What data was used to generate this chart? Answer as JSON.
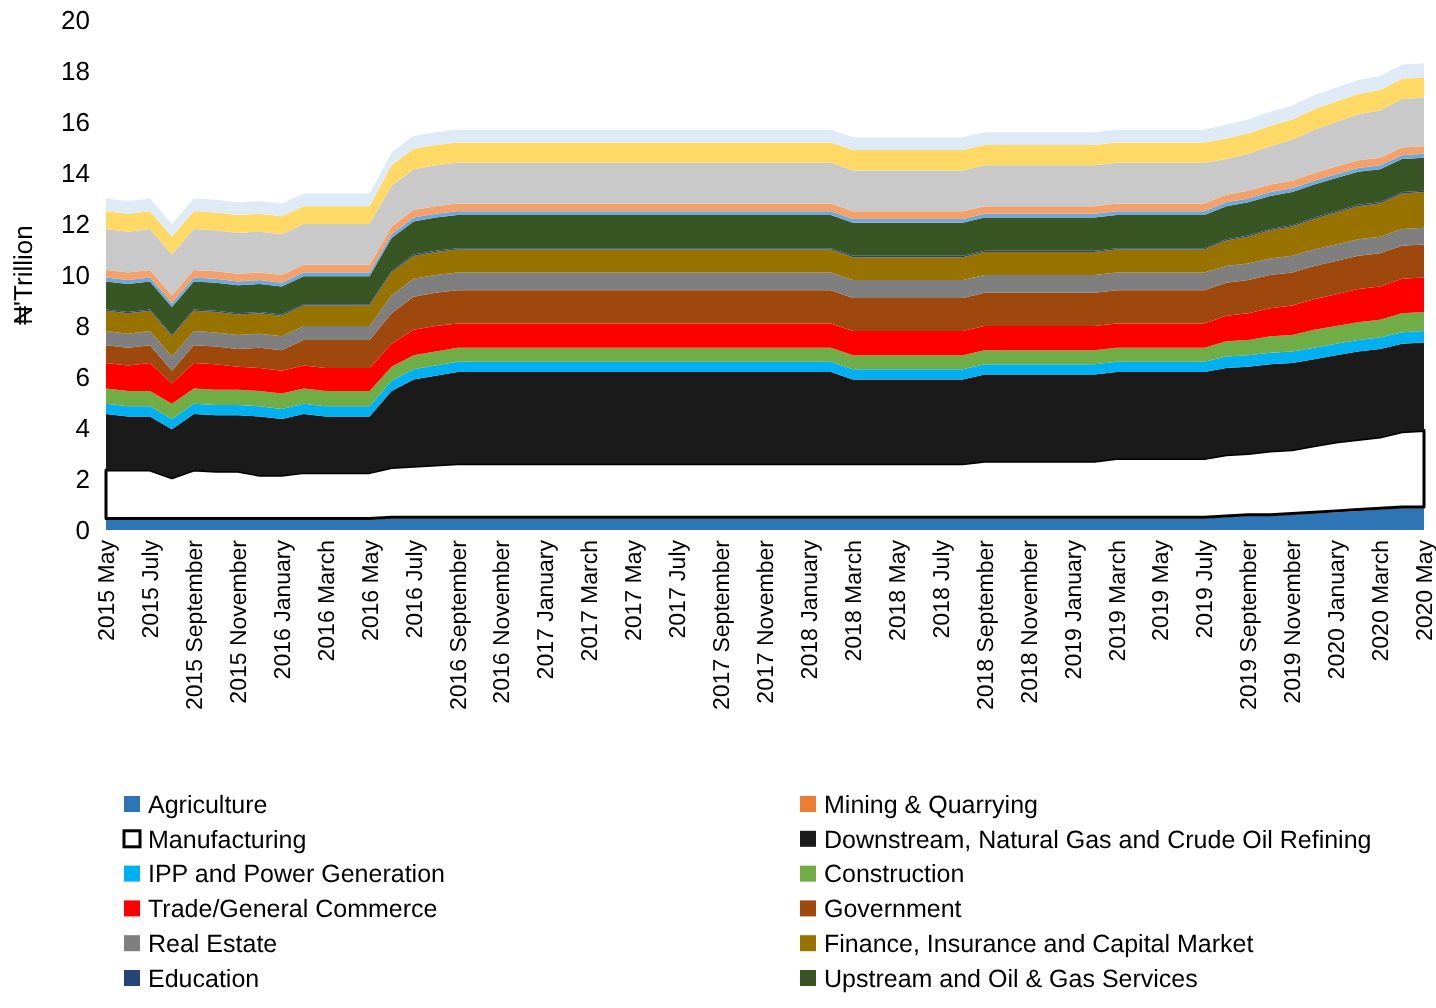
{
  "chart_data": {
    "type": "area",
    "stacked": true,
    "ylabel": "₦'Trillion",
    "ylim": [
      0,
      20
    ],
    "yticks": [
      0,
      2,
      4,
      6,
      8,
      10,
      12,
      14,
      16,
      18,
      20
    ],
    "grid": false,
    "legend": "bottom",
    "categories": [
      "2015 May",
      null,
      "2015 July",
      null,
      "2015 September",
      null,
      "2015 November",
      null,
      "2016 January",
      null,
      "2016 March",
      null,
      "2016 May",
      null,
      "2016 July",
      null,
      "2016 September",
      null,
      "2016 November",
      null,
      "2017 January",
      null,
      "2017 March",
      null,
      "2017 May",
      null,
      "2017 July",
      null,
      "2017 September",
      null,
      "2017 November",
      null,
      "2018 January",
      null,
      "2018 March",
      null,
      "2018 May",
      null,
      "2018 July",
      null,
      "2018 September",
      null,
      "2018 November",
      null,
      "2019 January",
      null,
      "2019 March",
      null,
      "2019 May",
      null,
      "2019 July",
      null,
      "2019 September",
      null,
      "2019 November",
      null,
      "2020 January",
      null,
      "2020 March",
      null,
      "2020 May"
    ],
    "series": [
      {
        "name": "Agriculture",
        "color": "#2e75b6",
        "values": [
          0.4,
          0.4,
          0.4,
          0.4,
          0.4,
          0.4,
          0.4,
          0.4,
          0.4,
          0.4,
          0.4,
          0.4,
          0.4,
          0.45,
          0.45,
          0.45,
          0.45,
          0.45,
          0.45,
          0.45,
          0.45,
          0.45,
          0.45,
          0.45,
          0.45,
          0.45,
          0.45,
          0.45,
          0.45,
          0.45,
          0.45,
          0.45,
          0.45,
          0.45,
          0.45,
          0.45,
          0.45,
          0.45,
          0.45,
          0.45,
          0.45,
          0.45,
          0.45,
          0.45,
          0.45,
          0.45,
          0.45,
          0.45,
          0.45,
          0.45,
          0.45,
          0.5,
          0.55,
          0.55,
          0.6,
          0.65,
          0.7,
          0.75,
          0.8,
          0.85,
          0.85
        ]
      },
      {
        "name": "Mining & Quarrying",
        "color": "#ed7d31",
        "values": [
          0.05,
          0.05,
          0.05,
          0.05,
          0.05,
          0.05,
          0.05,
          0.05,
          0.05,
          0.05,
          0.05,
          0.05,
          0.05,
          0.05,
          0.05,
          0.05,
          0.05,
          0.05,
          0.05,
          0.05,
          0.05,
          0.05,
          0.05,
          0.05,
          0.05,
          0.05,
          0.05,
          0.05,
          0.05,
          0.05,
          0.05,
          0.05,
          0.05,
          0.05,
          0.05,
          0.05,
          0.05,
          0.05,
          0.05,
          0.05,
          0.05,
          0.05,
          0.05,
          0.05,
          0.05,
          0.05,
          0.05,
          0.05,
          0.05,
          0.05,
          0.05,
          0.05,
          0.05,
          0.05,
          0.05,
          0.05,
          0.05,
          0.05,
          0.05,
          0.05,
          0.05
        ]
      },
      {
        "name": "Manufacturing",
        "color": "#ffffff",
        "values": [
          1.9,
          1.9,
          1.9,
          1.6,
          1.9,
          1.85,
          1.85,
          1.7,
          1.7,
          1.8,
          1.8,
          1.8,
          1.8,
          1.95,
          2.0,
          2.05,
          2.1,
          2.1,
          2.1,
          2.1,
          2.1,
          2.1,
          2.1,
          2.1,
          2.1,
          2.1,
          2.1,
          2.1,
          2.1,
          2.1,
          2.1,
          2.1,
          2.1,
          2.1,
          2.1,
          2.1,
          2.1,
          2.1,
          2.1,
          2.1,
          2.2,
          2.2,
          2.2,
          2.2,
          2.2,
          2.2,
          2.3,
          2.3,
          2.3,
          2.3,
          2.3,
          2.4,
          2.4,
          2.5,
          2.5,
          2.6,
          2.7,
          2.75,
          2.8,
          2.95,
          3.0
        ]
      },
      {
        "name": "Downstream, Natural Gas and Crude Oil Refining",
        "color": "#1a1a1a",
        "values": [
          2.2,
          2.1,
          2.1,
          1.9,
          2.2,
          2.2,
          2.2,
          2.3,
          2.2,
          2.3,
          2.2,
          2.2,
          2.2,
          3.0,
          3.4,
          3.5,
          3.6,
          3.6,
          3.6,
          3.6,
          3.6,
          3.6,
          3.6,
          3.6,
          3.6,
          3.6,
          3.6,
          3.6,
          3.6,
          3.6,
          3.6,
          3.6,
          3.6,
          3.6,
          3.3,
          3.3,
          3.3,
          3.3,
          3.3,
          3.3,
          3.4,
          3.4,
          3.4,
          3.4,
          3.4,
          3.4,
          3.4,
          3.4,
          3.4,
          3.4,
          3.4,
          3.4,
          3.4,
          3.4,
          3.4,
          3.4,
          3.4,
          3.45,
          3.45,
          3.45,
          3.45
        ]
      },
      {
        "name": "IPP and Power Generation",
        "color": "#00b0f0",
        "values": [
          0.4,
          0.4,
          0.4,
          0.4,
          0.4,
          0.4,
          0.4,
          0.4,
          0.4,
          0.4,
          0.4,
          0.4,
          0.4,
          0.4,
          0.4,
          0.4,
          0.4,
          0.4,
          0.4,
          0.4,
          0.4,
          0.4,
          0.4,
          0.4,
          0.4,
          0.4,
          0.4,
          0.4,
          0.4,
          0.4,
          0.4,
          0.4,
          0.4,
          0.4,
          0.4,
          0.4,
          0.4,
          0.4,
          0.4,
          0.4,
          0.4,
          0.4,
          0.4,
          0.4,
          0.4,
          0.4,
          0.4,
          0.4,
          0.4,
          0.4,
          0.4,
          0.45,
          0.45,
          0.45,
          0.45,
          0.45,
          0.45,
          0.45,
          0.45,
          0.45,
          0.45
        ]
      },
      {
        "name": "Construction",
        "color": "#70ad47",
        "values": [
          0.6,
          0.6,
          0.6,
          0.6,
          0.6,
          0.6,
          0.6,
          0.6,
          0.6,
          0.6,
          0.6,
          0.6,
          0.6,
          0.55,
          0.55,
          0.55,
          0.55,
          0.55,
          0.55,
          0.55,
          0.55,
          0.55,
          0.55,
          0.55,
          0.55,
          0.55,
          0.55,
          0.55,
          0.55,
          0.55,
          0.55,
          0.55,
          0.55,
          0.55,
          0.55,
          0.55,
          0.55,
          0.55,
          0.55,
          0.55,
          0.55,
          0.55,
          0.55,
          0.55,
          0.55,
          0.55,
          0.55,
          0.55,
          0.55,
          0.55,
          0.55,
          0.6,
          0.6,
          0.65,
          0.65,
          0.7,
          0.7,
          0.7,
          0.7,
          0.75,
          0.75
        ]
      },
      {
        "name": "Trade/General Commerce",
        "color": "#ff0000",
        "values": [
          1.0,
          1.0,
          1.1,
          0.8,
          1.0,
          1.0,
          0.9,
          0.9,
          0.9,
          0.9,
          0.9,
          0.9,
          0.9,
          0.9,
          1.0,
          1.0,
          0.95,
          0.95,
          0.95,
          0.95,
          0.95,
          0.95,
          0.95,
          0.95,
          0.95,
          0.95,
          0.95,
          0.95,
          0.95,
          0.95,
          0.95,
          0.95,
          0.95,
          0.95,
          0.95,
          0.95,
          0.95,
          0.95,
          0.95,
          0.95,
          0.95,
          0.95,
          0.95,
          0.95,
          0.95,
          0.95,
          0.95,
          0.95,
          0.95,
          0.95,
          0.95,
          1.0,
          1.05,
          1.1,
          1.15,
          1.2,
          1.25,
          1.3,
          1.3,
          1.35,
          1.35
        ]
      },
      {
        "name": "Government",
        "color": "#9e480e",
        "values": [
          0.7,
          0.7,
          0.7,
          0.5,
          0.7,
          0.7,
          0.7,
          0.8,
          0.8,
          1.0,
          1.1,
          1.1,
          1.1,
          1.2,
          1.3,
          1.3,
          1.3,
          1.3,
          1.3,
          1.3,
          1.3,
          1.3,
          1.3,
          1.3,
          1.3,
          1.3,
          1.3,
          1.3,
          1.3,
          1.3,
          1.3,
          1.3,
          1.3,
          1.3,
          1.3,
          1.3,
          1.3,
          1.3,
          1.3,
          1.3,
          1.3,
          1.3,
          1.3,
          1.3,
          1.3,
          1.3,
          1.3,
          1.3,
          1.3,
          1.3,
          1.3,
          1.3,
          1.3,
          1.3,
          1.3,
          1.3,
          1.3,
          1.3,
          1.3,
          1.3,
          1.3
        ]
      },
      {
        "name": "Real Estate",
        "color": "#7f7f7f",
        "values": [
          0.55,
          0.55,
          0.55,
          0.55,
          0.55,
          0.55,
          0.55,
          0.55,
          0.55,
          0.55,
          0.55,
          0.55,
          0.55,
          0.7,
          0.7,
          0.7,
          0.7,
          0.7,
          0.7,
          0.7,
          0.7,
          0.7,
          0.7,
          0.7,
          0.7,
          0.7,
          0.7,
          0.7,
          0.7,
          0.7,
          0.7,
          0.7,
          0.7,
          0.7,
          0.7,
          0.7,
          0.7,
          0.7,
          0.7,
          0.7,
          0.7,
          0.7,
          0.7,
          0.7,
          0.7,
          0.7,
          0.7,
          0.7,
          0.7,
          0.7,
          0.7,
          0.65,
          0.65,
          0.65,
          0.65,
          0.65,
          0.65,
          0.65,
          0.65,
          0.65,
          0.65
        ]
      },
      {
        "name": "Finance, Insurance and Capital Market",
        "color": "#997300",
        "values": [
          0.8,
          0.8,
          0.8,
          0.8,
          0.8,
          0.8,
          0.8,
          0.8,
          0.8,
          0.8,
          0.8,
          0.8,
          0.8,
          0.9,
          0.9,
          0.9,
          0.9,
          0.9,
          0.9,
          0.9,
          0.9,
          0.9,
          0.9,
          0.9,
          0.9,
          0.9,
          0.9,
          0.9,
          0.9,
          0.9,
          0.9,
          0.9,
          0.9,
          0.9,
          0.9,
          0.9,
          0.9,
          0.9,
          0.9,
          0.9,
          0.9,
          0.9,
          0.9,
          0.9,
          0.9,
          0.9,
          0.9,
          0.9,
          0.9,
          0.9,
          0.9,
          1.0,
          1.05,
          1.1,
          1.15,
          1.2,
          1.25,
          1.3,
          1.3,
          1.4,
          1.4
        ]
      },
      {
        "name": "Education",
        "color": "#264478",
        "values": [
          0.05,
          0.05,
          0.05,
          0.05,
          0.05,
          0.05,
          0.05,
          0.05,
          0.05,
          0.05,
          0.05,
          0.05,
          0.05,
          0.05,
          0.05,
          0.05,
          0.05,
          0.05,
          0.05,
          0.05,
          0.05,
          0.05,
          0.05,
          0.05,
          0.05,
          0.05,
          0.05,
          0.05,
          0.05,
          0.05,
          0.05,
          0.05,
          0.05,
          0.05,
          0.05,
          0.05,
          0.05,
          0.05,
          0.05,
          0.05,
          0.05,
          0.05,
          0.05,
          0.05,
          0.05,
          0.05,
          0.05,
          0.05,
          0.05,
          0.05,
          0.05,
          0.05,
          0.05,
          0.05,
          0.05,
          0.05,
          0.05,
          0.05,
          0.05,
          0.05,
          0.05
        ]
      },
      {
        "name": "Upstream and Oil & Gas Services",
        "color": "#375623",
        "values": [
          1.1,
          1.1,
          1.1,
          1.1,
          1.1,
          1.1,
          1.1,
          1.1,
          1.1,
          1.1,
          1.1,
          1.1,
          1.1,
          1.3,
          1.3,
          1.3,
          1.3,
          1.3,
          1.3,
          1.3,
          1.3,
          1.3,
          1.3,
          1.3,
          1.3,
          1.3,
          1.3,
          1.3,
          1.3,
          1.3,
          1.3,
          1.3,
          1.3,
          1.3,
          1.3,
          1.3,
          1.3,
          1.3,
          1.3,
          1.3,
          1.3,
          1.3,
          1.3,
          1.3,
          1.3,
          1.3,
          1.3,
          1.3,
          1.3,
          1.3,
          1.3,
          1.3,
          1.3,
          1.3,
          1.3,
          1.3,
          1.3,
          1.3,
          1.3,
          1.3,
          1.3
        ]
      },
      {
        "color": "#6fa8dc",
        "values": [
          0.15,
          0.15,
          0.15,
          0.15,
          0.15,
          0.15,
          0.15,
          0.15,
          0.15,
          0.15,
          0.15,
          0.15,
          0.15,
          0.15,
          0.15,
          0.15,
          0.15,
          0.15,
          0.15,
          0.15,
          0.15,
          0.15,
          0.15,
          0.15,
          0.15,
          0.15,
          0.15,
          0.15,
          0.15,
          0.15,
          0.15,
          0.15,
          0.15,
          0.15,
          0.15,
          0.15,
          0.15,
          0.15,
          0.15,
          0.15,
          0.15,
          0.15,
          0.15,
          0.15,
          0.15,
          0.15,
          0.15,
          0.15,
          0.15,
          0.15,
          0.15,
          0.15,
          0.15,
          0.15,
          0.15,
          0.15,
          0.15,
          0.15,
          0.15,
          0.15,
          0.15
        ]
      },
      {
        "color": "#f4a06a",
        "values": [
          0.3,
          0.3,
          0.3,
          0.3,
          0.3,
          0.3,
          0.3,
          0.3,
          0.3,
          0.3,
          0.3,
          0.3,
          0.3,
          0.3,
          0.3,
          0.3,
          0.3,
          0.3,
          0.3,
          0.3,
          0.3,
          0.3,
          0.3,
          0.3,
          0.3,
          0.3,
          0.3,
          0.3,
          0.3,
          0.3,
          0.3,
          0.3,
          0.3,
          0.3,
          0.3,
          0.3,
          0.3,
          0.3,
          0.3,
          0.3,
          0.3,
          0.3,
          0.3,
          0.3,
          0.3,
          0.3,
          0.3,
          0.3,
          0.3,
          0.3,
          0.3,
          0.3,
          0.3,
          0.3,
          0.3,
          0.3,
          0.3,
          0.3,
          0.3,
          0.3,
          0.3
        ]
      },
      {
        "color": "#c9c9c9",
        "values": [
          1.6,
          1.6,
          1.6,
          1.6,
          1.6,
          1.6,
          1.6,
          1.6,
          1.6,
          1.6,
          1.6,
          1.6,
          1.6,
          1.6,
          1.6,
          1.6,
          1.6,
          1.6,
          1.6,
          1.6,
          1.6,
          1.6,
          1.6,
          1.6,
          1.6,
          1.6,
          1.6,
          1.6,
          1.6,
          1.6,
          1.6,
          1.6,
          1.6,
          1.6,
          1.6,
          1.6,
          1.6,
          1.6,
          1.6,
          1.6,
          1.6,
          1.6,
          1.6,
          1.6,
          1.6,
          1.6,
          1.6,
          1.6,
          1.6,
          1.6,
          1.6,
          1.4,
          1.45,
          1.5,
          1.6,
          1.7,
          1.75,
          1.8,
          1.85,
          1.9,
          1.9
        ]
      },
      {
        "color": "#ffd966",
        "values": [
          0.7,
          0.7,
          0.7,
          0.7,
          0.7,
          0.7,
          0.7,
          0.7,
          0.7,
          0.7,
          0.7,
          0.7,
          0.7,
          0.8,
          0.8,
          0.8,
          0.8,
          0.8,
          0.8,
          0.8,
          0.8,
          0.8,
          0.8,
          0.8,
          0.8,
          0.8,
          0.8,
          0.8,
          0.8,
          0.8,
          0.8,
          0.8,
          0.8,
          0.8,
          0.8,
          0.8,
          0.8,
          0.8,
          0.8,
          0.8,
          0.8,
          0.8,
          0.8,
          0.8,
          0.8,
          0.8,
          0.8,
          0.8,
          0.8,
          0.8,
          0.8,
          0.8,
          0.8,
          0.8,
          0.8,
          0.8,
          0.8,
          0.8,
          0.8,
          0.8,
          0.8
        ]
      },
      {
        "color": "#deebf7",
        "values": [
          0.5,
          0.5,
          0.5,
          0.5,
          0.5,
          0.5,
          0.5,
          0.5,
          0.5,
          0.5,
          0.5,
          0.5,
          0.5,
          0.5,
          0.5,
          0.5,
          0.5,
          0.5,
          0.5,
          0.5,
          0.5,
          0.5,
          0.5,
          0.5,
          0.5,
          0.5,
          0.5,
          0.5,
          0.5,
          0.5,
          0.5,
          0.5,
          0.5,
          0.5,
          0.5,
          0.5,
          0.5,
          0.5,
          0.5,
          0.5,
          0.5,
          0.5,
          0.5,
          0.5,
          0.5,
          0.5,
          0.5,
          0.5,
          0.5,
          0.5,
          0.5,
          0.55,
          0.55,
          0.55,
          0.55,
          0.55,
          0.55,
          0.55,
          0.55,
          0.55,
          0.55
        ]
      }
    ]
  }
}
